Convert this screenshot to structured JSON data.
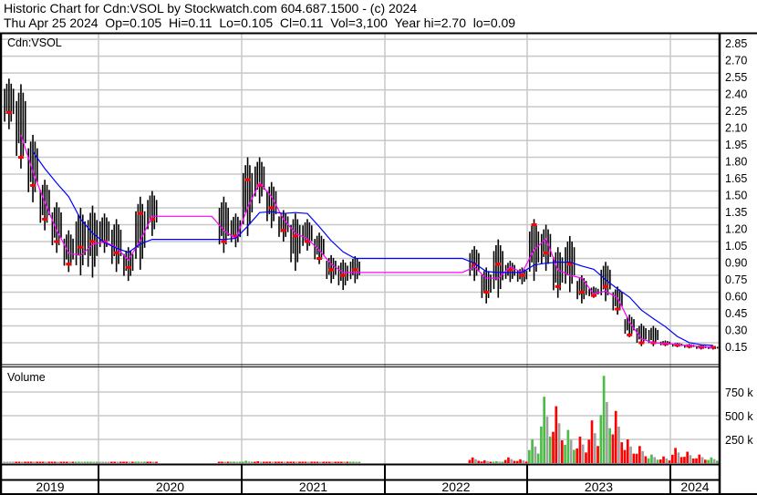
{
  "header": {
    "line1": "Historic Chart for Cdn:VSOL by Stockwatch.com 604.687.1500 - (c) 2024",
    "line2": "Thu Apr 25 2024  Op=0.105  Hi=0.11  Lo=0.105  Cl=0.11  Vol=3,100  Year hi=2.70  lo=0.09"
  },
  "colors": {
    "price_bar": "#000000",
    "close_mark": "#ff0000",
    "ma_short": "#ff00ff",
    "ma_long": "#0000ff",
    "vol_up": "#4cbb47",
    "vol_down": "#ff0000",
    "vol_flat": "#a0a0a0",
    "grid": "#c8c8c8"
  },
  "chart_data": [
    {
      "type": "bar",
      "subtype": "ohlc-price-with-moving-averages",
      "title": "Cdn:VSOL",
      "x_range": [
        "2019-04",
        "2024-04"
      ],
      "ylim": [
        0,
        2.95
      ],
      "yticks": [
        "0.15",
        "0.30",
        "0.45",
        "0.60",
        "0.75",
        "0.90",
        "1.05",
        "1.20",
        "1.35",
        "1.50",
        "1.65",
        "1.80",
        "1.95",
        "2.10",
        "2.25",
        "2.40",
        "2.55",
        "2.70",
        "2.85"
      ],
      "grid": true,
      "moving_averages": [
        "short",
        "long"
      ],
      "months": [
        "2019-05",
        "2019-06",
        "2019-07",
        "2019-08",
        "2019-09",
        "2019-10",
        "2019-11",
        "2019-12",
        "2020-01",
        "2020-02",
        "2020-03",
        "2020-04",
        "2020-05",
        "2020-06",
        "2020-07",
        "2020-08",
        "2020-09",
        "2020-10",
        "2020-11",
        "2020-12",
        "2021-01",
        "2021-02",
        "2021-03",
        "2021-04",
        "2021-05",
        "2021-06",
        "2021-07",
        "2021-08",
        "2021-09",
        "2021-10",
        "2021-11",
        "2021-12",
        "2022-01",
        "2022-02",
        "2022-03",
        "2022-04",
        "2022-05",
        "2022-06",
        "2022-07",
        "2022-08",
        "2022-09",
        "2022-10",
        "2022-11",
        "2022-12",
        "2023-01",
        "2023-02",
        "2023-03",
        "2023-04",
        "2023-05",
        "2023-06",
        "2023-07",
        "2023-08",
        "2023-09",
        "2023-10",
        "2023-11",
        "2023-12",
        "2024-01",
        "2024-02",
        "2024-03",
        "2024-04"
      ],
      "high": [
        2.5,
        2.45,
        2.0,
        1.6,
        1.4,
        1.15,
        1.35,
        1.37,
        1.3,
        1.25,
        1.0,
        1.45,
        1.5,
        null,
        null,
        null,
        null,
        null,
        1.45,
        1.3,
        1.8,
        1.8,
        1.58,
        1.33,
        1.3,
        1.25,
        1.13,
        0.93,
        0.89,
        0.92,
        null,
        null,
        null,
        null,
        null,
        null,
        null,
        null,
        null,
        1.01,
        0.82,
        1.07,
        0.88,
        0.82,
        1.25,
        1.2,
        1.0,
        1.1,
        0.75,
        0.65,
        0.87,
        0.65,
        0.4,
        0.32,
        0.3,
        0.17,
        0.15,
        0.14,
        0.13,
        0.12
      ],
      "low": [
        2.05,
        1.7,
        1.4,
        1.15,
        0.95,
        0.78,
        0.75,
        0.73,
        0.95,
        0.78,
        0.7,
        0.8,
        1.1,
        null,
        null,
        null,
        null,
        null,
        0.95,
        1.0,
        1.1,
        1.39,
        1.17,
        1.05,
        0.79,
        0.97,
        0.85,
        0.68,
        0.62,
        0.68,
        null,
        null,
        null,
        null,
        null,
        null,
        null,
        null,
        null,
        0.7,
        0.5,
        0.55,
        0.69,
        0.67,
        0.7,
        0.79,
        0.55,
        0.6,
        0.5,
        0.55,
        0.52,
        0.4,
        0.2,
        0.12,
        0.12,
        0.12,
        0.11,
        0.1,
        0.09,
        0.09
      ],
      "close": [
        2.2,
        1.8,
        1.55,
        1.25,
        1.05,
        0.85,
        1.0,
        1.05,
        1.05,
        0.95,
        0.82,
        1.3,
        1.25,
        null,
        null,
        null,
        null,
        null,
        1.05,
        1.1,
        1.6,
        1.55,
        1.35,
        1.15,
        1.1,
        1.05,
        0.9,
        0.8,
        0.75,
        0.8,
        null,
        null,
        null,
        null,
        null,
        null,
        null,
        null,
        null,
        0.85,
        0.6,
        0.85,
        0.8,
        0.75,
        1.2,
        0.95,
        0.65,
        0.85,
        0.6,
        0.57,
        0.65,
        0.45,
        0.22,
        0.15,
        0.15,
        0.14,
        0.13,
        0.12,
        0.11,
        0.11
      ]
    },
    {
      "type": "bar",
      "title": "Volume",
      "yticks": [
        "250 k",
        "500 k",
        "750 k"
      ],
      "ylim": [
        0,
        1000000
      ],
      "grid": true,
      "volume": [
        15000,
        10000,
        12000,
        8000,
        14000,
        8000,
        6000,
        10000,
        10000,
        8000,
        6000,
        12000,
        10000,
        null,
        null,
        null,
        null,
        null,
        10000,
        15000,
        25000,
        20000,
        15000,
        12000,
        10000,
        8000,
        8000,
        8000,
        10000,
        12000,
        null,
        null,
        null,
        null,
        null,
        null,
        null,
        null,
        null,
        60000,
        30000,
        20000,
        60000,
        40000,
        250000,
        700000,
        600000,
        350000,
        280000,
        450000,
        920000,
        550000,
        250000,
        180000,
        90000,
        70000,
        160000,
        120000,
        90000,
        60000
      ],
      "direction": [
        "flat",
        "down",
        "down",
        "down",
        "down",
        "down",
        "up",
        "up",
        "flat",
        "down",
        "down",
        "up",
        "down",
        null,
        null,
        null,
        null,
        null,
        "down",
        "up",
        "up",
        "down",
        "down",
        "down",
        "down",
        "down",
        "down",
        "down",
        "down",
        "up",
        null,
        null,
        null,
        null,
        null,
        null,
        null,
        null,
        null,
        "down",
        "down",
        "up",
        "down",
        "down",
        "up",
        "up",
        "down",
        "up",
        "down",
        "down",
        "up",
        "down",
        "down",
        "down",
        "up",
        "down",
        "down",
        "down",
        "down",
        "up"
      ]
    }
  ],
  "x_axis": {
    "years": [
      "2019",
      "2020",
      "2021",
      "2022",
      "2023",
      "2024"
    ]
  }
}
